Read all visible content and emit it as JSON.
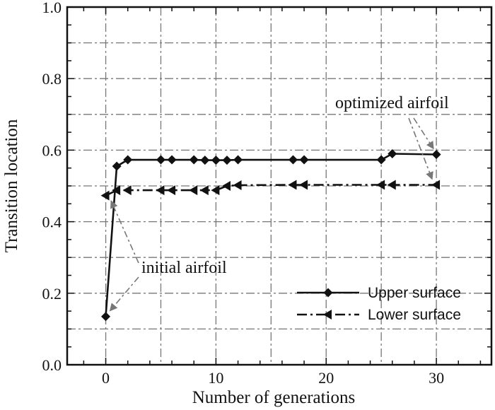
{
  "chart_data": {
    "type": "line",
    "xlabel": "Number of generations",
    "ylabel": "Transition location",
    "xlim": [
      -3.5,
      35
    ],
    "ylim": [
      0,
      1.0
    ],
    "xticks": [
      0,
      10,
      20,
      30
    ],
    "xtick_labels": [
      "0",
      "10",
      "20",
      "30"
    ],
    "yticks": [
      0.0,
      0.2,
      0.4,
      0.6,
      0.8,
      1.0
    ],
    "ytick_labels": [
      "0.0",
      "0.2",
      "0.4",
      "0.6",
      "0.8",
      "1.0"
    ],
    "grid": true,
    "legend_position": "lower-right",
    "series": [
      {
        "name": "Upper surface",
        "marker": "diamond",
        "line_style": "solid",
        "color": "#111111",
        "x": [
          0,
          1,
          2,
          5,
          6,
          8,
          9,
          10,
          11,
          12,
          17,
          18,
          25,
          26,
          30
        ],
        "y": [
          0.135,
          0.555,
          0.573,
          0.573,
          0.573,
          0.573,
          0.572,
          0.572,
          0.572,
          0.573,
          0.573,
          0.573,
          0.573,
          0.59,
          0.588
        ]
      },
      {
        "name": "Lower surface",
        "marker": "left-triangle",
        "line_style": "dash-dot",
        "color": "#111111",
        "x": [
          0,
          1,
          2,
          5,
          6,
          8,
          9,
          10,
          11,
          12,
          17,
          18,
          25,
          26,
          30
        ],
        "y": [
          0.473,
          0.488,
          0.488,
          0.488,
          0.488,
          0.488,
          0.488,
          0.488,
          0.5,
          0.502,
          0.503,
          0.503,
          0.503,
          0.503,
          0.503
        ]
      }
    ],
    "annotations": [
      {
        "text": "optimized airfoil"
      },
      {
        "text": "initial airfoil"
      }
    ]
  }
}
